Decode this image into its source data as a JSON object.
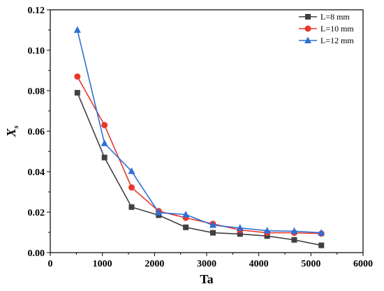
{
  "chart_data": {
    "type": "line",
    "xlabel": "Ta",
    "ylabel_main": "X",
    "ylabel_sub": "s",
    "xlim": [
      0,
      6000
    ],
    "ylim": [
      0,
      0.12
    ],
    "xticks": [
      0,
      1000,
      2000,
      3000,
      4000,
      5000,
      6000
    ],
    "xtick_labels": [
      "0",
      "1000",
      "2000",
      "3000",
      "4000",
      "5000",
      "6000"
    ],
    "yticks": [
      0,
      0.02,
      0.04,
      0.06,
      0.08,
      0.1,
      0.12
    ],
    "ytick_labels": [
      "0.00",
      "0.02",
      "0.04",
      "0.06",
      "0.08",
      "0.10",
      "0.12"
    ],
    "grid": false,
    "legend_position": "top-right",
    "series": [
      {
        "name": "L=8 mm",
        "color": "#404040",
        "marker": "square",
        "points": [
          [
            520,
            0.079
          ],
          [
            1040,
            0.047
          ],
          [
            1560,
            0.0225
          ],
          [
            2080,
            0.0185
          ],
          [
            2600,
            0.0125
          ],
          [
            3120,
            0.0098
          ],
          [
            3640,
            0.0092
          ],
          [
            4160,
            0.0082
          ],
          [
            4680,
            0.0063
          ],
          [
            5200,
            0.0036
          ]
        ]
      },
      {
        "name": "L=10 mm",
        "color": "#e8382c",
        "marker": "circle",
        "points": [
          [
            520,
            0.087
          ],
          [
            1040,
            0.063
          ],
          [
            1560,
            0.0322
          ],
          [
            2080,
            0.0205
          ],
          [
            2600,
            0.0172
          ],
          [
            3120,
            0.0142
          ],
          [
            3640,
            0.0112
          ],
          [
            4160,
            0.0098
          ],
          [
            4680,
            0.0098
          ],
          [
            5200,
            0.0094
          ]
        ]
      },
      {
        "name": "L=12 mm",
        "color": "#2e6fd6",
        "marker": "triangle",
        "points": [
          [
            520,
            0.11
          ],
          [
            1040,
            0.054
          ],
          [
            1560,
            0.0402
          ],
          [
            2080,
            0.0198
          ],
          [
            2600,
            0.0188
          ],
          [
            3120,
            0.0136
          ],
          [
            3640,
            0.0122
          ],
          [
            4160,
            0.0108
          ],
          [
            4680,
            0.0106
          ],
          [
            5200,
            0.0098
          ]
        ]
      }
    ]
  }
}
